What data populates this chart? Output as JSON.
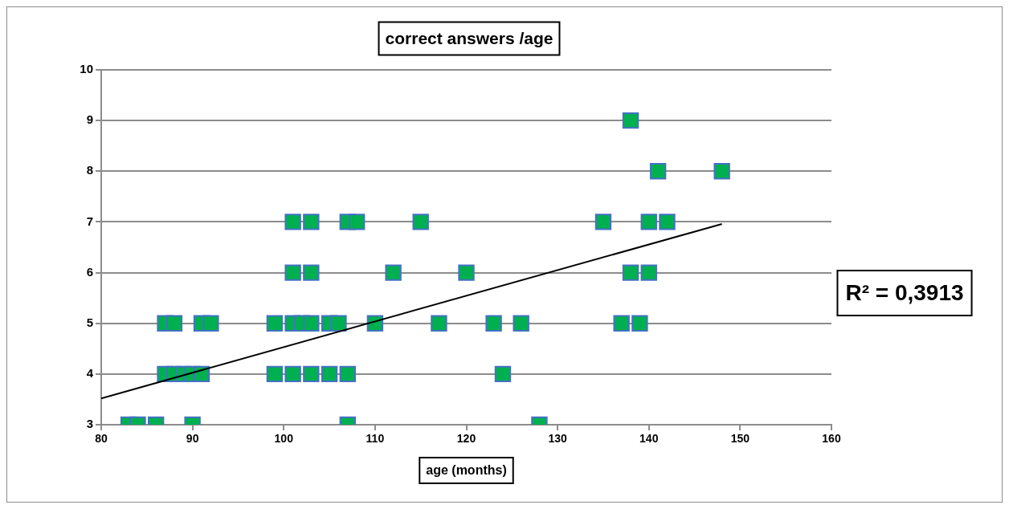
{
  "chart_data": {
    "type": "scatter",
    "title": "correct answers /age",
    "xlabel": "age (months)",
    "annotations": [
      "R² = 0,3913"
    ],
    "xlim": [
      80,
      160
    ],
    "xticks": [
      80,
      90,
      100,
      110,
      120,
      130,
      140,
      150,
      160
    ],
    "ylim": [
      3,
      10
    ],
    "yticks": [
      3,
      4,
      5,
      6,
      7,
      8,
      9,
      10
    ],
    "grid": "y",
    "legend": false,
    "marker": "square",
    "series": [
      {
        "type": "scatter",
        "color": "#00b050",
        "x": [
          83,
          84,
          86,
          90,
          107,
          128,
          87,
          88,
          89,
          90,
          91,
          99,
          101,
          103,
          105,
          107,
          124,
          87,
          88,
          91,
          92,
          99,
          101,
          102,
          103,
          105,
          106,
          110,
          117,
          123,
          126,
          137,
          139,
          101,
          103,
          112,
          120,
          138,
          140,
          101,
          103,
          107,
          108,
          115,
          135,
          140,
          142,
          141,
          148,
          138
        ],
        "values": [
          3,
          3,
          3,
          3,
          3,
          3,
          4,
          4,
          4,
          4,
          4,
          4,
          4,
          4,
          4,
          4,
          4,
          5,
          5,
          5,
          5,
          5,
          5,
          5,
          5,
          5,
          5,
          5,
          5,
          5,
          5,
          5,
          5,
          6,
          6,
          6,
          6,
          6,
          6,
          7,
          7,
          7,
          7,
          7,
          7,
          7,
          7,
          8,
          8,
          9
        ]
      },
      {
        "type": "line",
        "color": "#000000",
        "marker": "none",
        "line_style": "solid",
        "x": [
          80,
          148
        ],
        "values": [
          3.52,
          6.96
        ]
      }
    ]
  }
}
